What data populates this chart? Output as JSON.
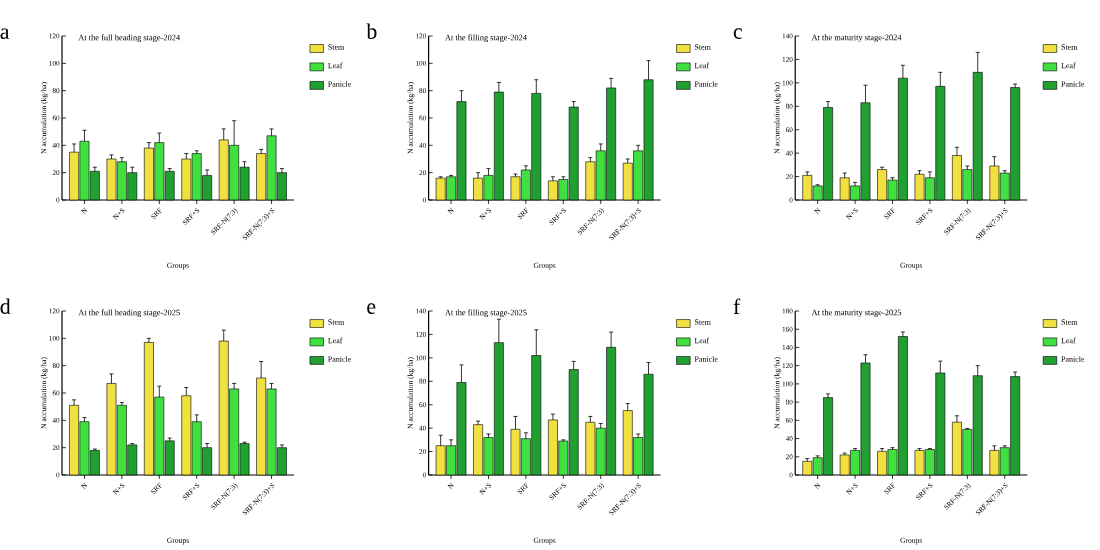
{
  "chart_data": [
    {
      "type": "bar",
      "title": "At the full heading stage-2024",
      "annotations": [
        "a"
      ],
      "xlabel": "Groups",
      "ylabel": "N accumulation (kg/ha)",
      "categories": [
        "N",
        "N+S",
        "SRF",
        "SRF+S",
        "SRF-N(7:3)",
        "SRF-N(7:3)+S"
      ],
      "ylim": [
        0,
        120
      ],
      "yticks": [
        0,
        20,
        40,
        60,
        80,
        100,
        120
      ],
      "legend": "top right",
      "series": [
        {
          "name": "Stem",
          "color": "#f0e040",
          "values": [
            35,
            30,
            38,
            30,
            44,
            34
          ],
          "errors": [
            6,
            3,
            4,
            4,
            8,
            3
          ]
        },
        {
          "name": "Leaf",
          "color": "#40e040",
          "values": [
            43,
            28,
            42,
            34,
            40,
            47
          ],
          "errors": [
            8,
            3,
            7,
            2,
            18,
            5
          ]
        },
        {
          "name": "Panicle",
          "color": "#20a030",
          "values": [
            21,
            20,
            21,
            18,
            24,
            20
          ],
          "errors": [
            3,
            4,
            2,
            4,
            4,
            3
          ]
        }
      ]
    },
    {
      "type": "bar",
      "title": "At the filling stage-2024",
      "annotations": [
        "b"
      ],
      "xlabel": "Groups",
      "ylabel": "N accumulation (kg/ha)",
      "categories": [
        "N",
        "N+S",
        "SRF",
        "SRF+S",
        "SRF-N(7:3)",
        "SRF-N(7:3)+S"
      ],
      "ylim": [
        0,
        120
      ],
      "yticks": [
        0,
        20,
        40,
        60,
        80,
        100,
        120
      ],
      "legend": "top right",
      "series": [
        {
          "name": "Stem",
          "color": "#f0e040",
          "values": [
            16,
            16,
            17,
            14,
            28,
            27
          ],
          "errors": [
            1,
            4,
            2,
            3,
            3,
            3
          ]
        },
        {
          "name": "Leaf",
          "color": "#40e040",
          "values": [
            17,
            18,
            22,
            15,
            36,
            36
          ],
          "errors": [
            1,
            5,
            3,
            2,
            5,
            4
          ]
        },
        {
          "name": "Panicle",
          "color": "#20a030",
          "values": [
            72,
            79,
            78,
            68,
            82,
            88
          ],
          "errors": [
            8,
            7,
            10,
            4,
            7,
            14
          ]
        }
      ]
    },
    {
      "type": "bar",
      "title": "At the maturity stage-2024",
      "annotations": [
        "c"
      ],
      "xlabel": "Groups",
      "ylabel": "N accumulation (kg/ha)",
      "categories": [
        "N",
        "N+S",
        "SRF",
        "SRF+S",
        "SRF-N(7:3)",
        "SRF-N(7:3)+S"
      ],
      "ylim": [
        0,
        140
      ],
      "yticks": [
        0,
        20,
        40,
        60,
        80,
        100,
        120,
        140
      ],
      "legend": "top right",
      "series": [
        {
          "name": "Stem",
          "color": "#f0e040",
          "values": [
            21,
            19,
            26,
            22,
            38,
            29
          ],
          "errors": [
            3,
            4,
            2,
            3,
            7,
            8
          ]
        },
        {
          "name": "Leaf",
          "color": "#40e040",
          "values": [
            12,
            12,
            17,
            19,
            26,
            23
          ],
          "errors": [
            1,
            3,
            2,
            5,
            3,
            2
          ]
        },
        {
          "name": "Panicle",
          "color": "#20a030",
          "values": [
            79,
            83,
            104,
            97,
            109,
            96
          ],
          "errors": [
            5,
            15,
            11,
            12,
            17,
            3
          ]
        }
      ]
    },
    {
      "type": "bar",
      "title": "At the full heading stage-2025",
      "annotations": [
        "d"
      ],
      "xlabel": "Groups",
      "ylabel": "N accumulation (kg/ha)",
      "categories": [
        "N",
        "N+S",
        "SRF",
        "SRF+S",
        "SRF-N(7:3)",
        "SRF-N(7:3)+S"
      ],
      "ylim": [
        0,
        120
      ],
      "yticks": [
        0,
        20,
        40,
        60,
        80,
        100,
        120
      ],
      "legend": "top right",
      "series": [
        {
          "name": "Stem",
          "color": "#f0e040",
          "values": [
            51,
            67,
            97,
            58,
            98,
            71
          ],
          "errors": [
            4,
            7,
            3,
            6,
            8,
            12
          ]
        },
        {
          "name": "Leaf",
          "color": "#40e040",
          "values": [
            39,
            51,
            57,
            39,
            63,
            63
          ],
          "errors": [
            3,
            2,
            8,
            5,
            4,
            4
          ]
        },
        {
          "name": "Panicle",
          "color": "#20a030",
          "values": [
            18,
            22,
            25,
            20,
            23,
            20
          ],
          "errors": [
            1,
            1,
            2,
            3,
            1,
            2
          ]
        }
      ]
    },
    {
      "type": "bar",
      "title": "At the filling stage-2025",
      "annotations": [
        "e"
      ],
      "xlabel": "Groups",
      "ylabel": "N accumulation (kg/ha)",
      "categories": [
        "N",
        "N+S",
        "SRF",
        "SRF+S",
        "SRF-N(7:3)",
        "SRF-N(7:3)+S"
      ],
      "ylim": [
        0,
        140
      ],
      "yticks": [
        0,
        20,
        40,
        60,
        80,
        100,
        120,
        140
      ],
      "legend": "top right",
      "series": [
        {
          "name": "Stem",
          "color": "#f0e040",
          "values": [
            25,
            43,
            39,
            47,
            45,
            55
          ],
          "errors": [
            9,
            3,
            11,
            5,
            5,
            6
          ]
        },
        {
          "name": "Leaf",
          "color": "#40e040",
          "values": [
            25,
            32,
            31,
            29,
            40,
            32
          ],
          "errors": [
            5,
            3,
            5,
            1,
            4,
            3
          ]
        },
        {
          "name": "Panicle",
          "color": "#20a030",
          "values": [
            79,
            113,
            102,
            90,
            109,
            86
          ],
          "errors": [
            15,
            20,
            22,
            7,
            13,
            10
          ]
        }
      ]
    },
    {
      "type": "bar",
      "title": "At the maturity stage-2025",
      "annotations": [
        "f"
      ],
      "xlabel": "Groups",
      "ylabel": "N accumulation (kg/ha)",
      "categories": [
        "N",
        "N+S",
        "SRF",
        "SRF+S",
        "SRF-N(7:3)",
        "SRF-N(7:3)+S"
      ],
      "ylim": [
        0,
        180
      ],
      "yticks": [
        0,
        20,
        40,
        60,
        80,
        100,
        120,
        140,
        160,
        180
      ],
      "legend": "top right",
      "series": [
        {
          "name": "Stem",
          "color": "#f0e040",
          "values": [
            15,
            22,
            26,
            27,
            58,
            27
          ],
          "errors": [
            3,
            2,
            3,
            2,
            7,
            5
          ]
        },
        {
          "name": "Leaf",
          "color": "#40e040",
          "values": [
            19,
            27,
            28,
            28,
            50,
            30
          ],
          "errors": [
            2,
            2,
            2,
            1,
            1,
            2
          ]
        },
        {
          "name": "Panicle",
          "color": "#20a030",
          "values": [
            85,
            123,
            152,
            112,
            109,
            108
          ],
          "errors": [
            4,
            9,
            5,
            13,
            11,
            5
          ]
        }
      ]
    }
  ]
}
